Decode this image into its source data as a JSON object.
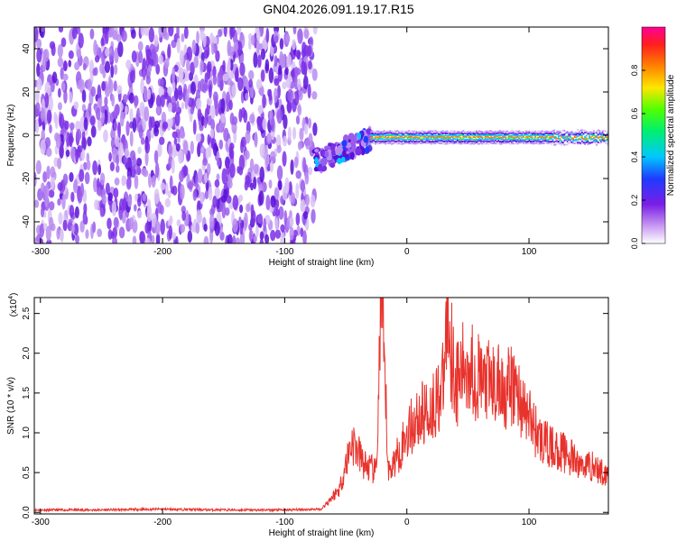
{
  "page": {
    "title": "GN04.2026.091.19.17.R15"
  },
  "colors": {
    "series_line": "#e8322c",
    "frame": "#000000",
    "background": "#ffffff"
  },
  "chart_data": [
    {
      "type": "heatmap",
      "title": "GN04.2026.091.19.17.R15",
      "xlabel": "Height of straight line (km)",
      "ylabel": "Frequency (Hz)",
      "xlim": [
        -305,
        165
      ],
      "ylim": [
        -50,
        50
      ],
      "xticks": [
        -300,
        -200,
        -100,
        0,
        100
      ],
      "xtick_labels": [
        "-300",
        "-200",
        "-100",
        "0",
        "100"
      ],
      "yticks": [
        -40,
        -20,
        0,
        20,
        40
      ],
      "ytick_labels": [
        "-40",
        "-20",
        "0",
        "20",
        "40"
      ],
      "colorbar": {
        "label": "Normalized spectral amplitude",
        "range": [
          0,
          1
        ],
        "ticks": [
          0.0,
          0.2,
          0.4,
          0.6,
          0.8
        ],
        "tick_labels": [
          "0.0",
          "0.2",
          "0.4",
          "0.6",
          "0.8"
        ],
        "colormap": "rainbow (white-violet-blue-cyan-green-yellow-red-magenta)"
      },
      "regions": [
        {
          "name": "noise",
          "x_range": [
            -305,
            -75
          ],
          "freq_range": [
            -50,
            50
          ],
          "amplitude": 0.12
        },
        {
          "name": "transition",
          "x_range": [
            -75,
            -30
          ],
          "freq_start": -12,
          "freq_end": -2,
          "amplitude": 0.4
        },
        {
          "name": "carrier",
          "x_range": [
            -30,
            165
          ],
          "freq": -1,
          "amplitude": 0.95
        }
      ],
      "grid": false
    },
    {
      "type": "line",
      "title": "",
      "xlabel": "Height of straight line (km)",
      "ylabel": "SNR (10 * v/v)",
      "yscale_label": "(x10",
      "yscale_exp": "4",
      "xlim": [
        -305,
        165
      ],
      "ylim": [
        -0.02,
        2.7
      ],
      "xticks": [
        -300,
        -200,
        -100,
        0,
        100
      ],
      "xtick_labels": [
        "-300",
        "-200",
        "-100",
        "0",
        "100"
      ],
      "yticks": [
        0.0,
        0.5,
        1.0,
        1.5,
        2.0,
        2.5
      ],
      "ytick_labels": [
        "0.0",
        "0.5",
        "1.0",
        "1.5",
        "2.0",
        "2.5"
      ],
      "grid": false,
      "series": [
        {
          "x": [
            -305,
            -250,
            -200,
            -150,
            -100,
            -70,
            -55,
            -45,
            -35,
            -25,
            -21,
            -15,
            -5,
            0,
            10,
            20,
            30,
            33,
            40,
            50,
            60,
            70,
            80,
            90,
            95,
            100,
            110,
            120,
            130,
            140,
            150,
            160,
            165
          ],
          "y": [
            0.03,
            0.03,
            0.04,
            0.03,
            0.03,
            0.04,
            0.3,
            0.9,
            0.6,
            0.5,
            2.7,
            0.5,
            0.8,
            1.0,
            1.2,
            1.3,
            1.6,
            2.55,
            1.6,
            1.9,
            1.65,
            1.6,
            1.55,
            1.55,
            1.3,
            1.2,
            0.9,
            0.8,
            0.75,
            0.6,
            0.6,
            0.5,
            0.5
          ]
        }
      ]
    }
  ]
}
